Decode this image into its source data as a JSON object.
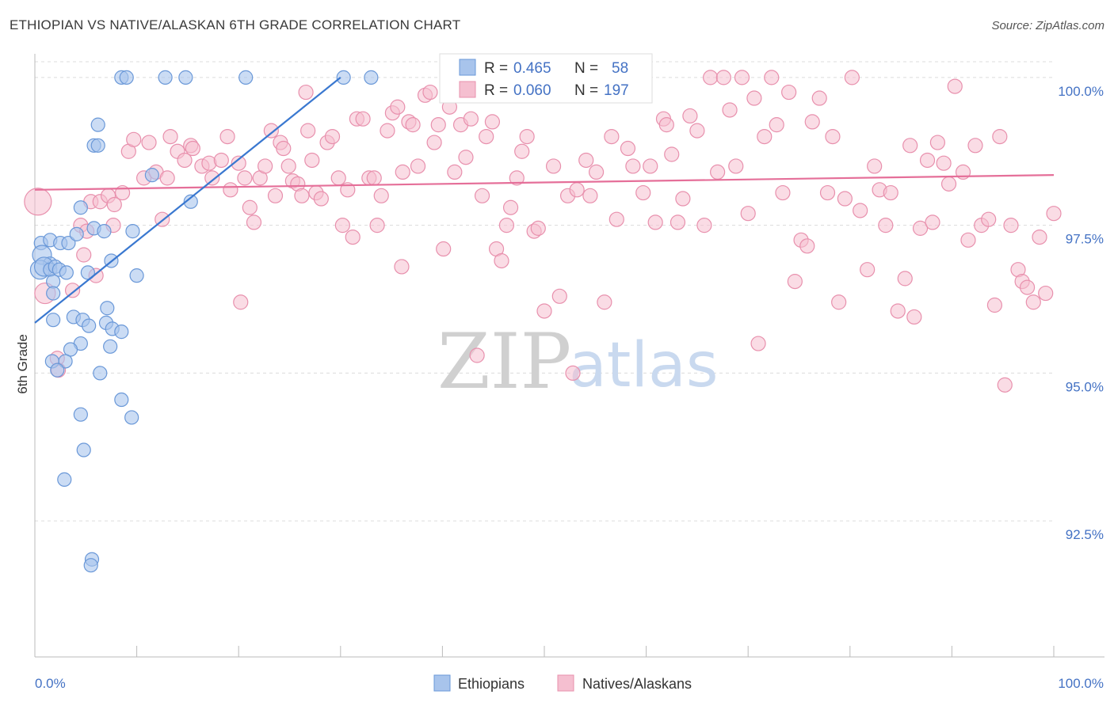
{
  "header": {
    "title": "ETHIOPIAN VS NATIVE/ALASKAN 6TH GRADE CORRELATION CHART",
    "source": "Source: ZipAtlas.com"
  },
  "watermark": {
    "zip": "ZIP",
    "atlas": "atlas"
  },
  "legend": {
    "rows": [
      {
        "r_label": "R =",
        "r_value": "0.465",
        "n_label": "N =",
        "n_value": "58"
      },
      {
        "r_label": "R =",
        "r_value": "0.060",
        "n_label": "N =",
        "n_value": "197"
      }
    ]
  },
  "bottom_legend": {
    "series1": "Ethiopians",
    "series2": "Natives/Alaskans"
  },
  "chart_data": {
    "type": "scatter",
    "title": "ETHIOPIAN VS NATIVE/ALASKAN 6TH GRADE CORRELATION CHART",
    "xlabel": "",
    "ylabel": "6th Grade",
    "xlim": [
      0,
      100
    ],
    "ylim": [
      90.2,
      100.4
    ],
    "y_ticks": [
      {
        "value": 100.0,
        "label": "100.0%"
      },
      {
        "value": 97.5,
        "label": "97.5%"
      },
      {
        "value": 95.0,
        "label": "95.0%"
      },
      {
        "value": 92.5,
        "label": "92.5%"
      }
    ],
    "x_tick_labels": [
      {
        "value": 0,
        "label": "0.0%"
      },
      {
        "value": 100,
        "label": "100.0%"
      }
    ],
    "grid": true,
    "legend_position": "top-center",
    "colors": {
      "ethiopians_fill": "#a8c4ec",
      "ethiopians_stroke": "#6a98d8",
      "ethiopians_line": "#3a78d0",
      "natives_fill": "#f5bfd0",
      "natives_stroke": "#e890ad",
      "natives_line": "#e56f99"
    },
    "series": [
      {
        "name": "Ethiopians",
        "trend": {
          "x1": 0,
          "y1": 95.85,
          "x2": 30,
          "y2": 100.0
        },
        "points": [
          [
            8.5,
            100.0
          ],
          [
            9.0,
            100.0
          ],
          [
            12.8,
            100.0
          ],
          [
            14.8,
            100.0
          ],
          [
            20.7,
            100.0
          ],
          [
            30.3,
            100.0
          ],
          [
            33.0,
            100.0
          ],
          [
            6.2,
            99.2
          ],
          [
            5.8,
            98.85
          ],
          [
            6.2,
            98.85
          ],
          [
            11.5,
            98.35
          ],
          [
            15.3,
            97.9
          ],
          [
            4.5,
            97.8
          ],
          [
            5.8,
            97.45
          ],
          [
            6.8,
            97.4
          ],
          [
            9.6,
            97.4
          ],
          [
            0.6,
            97.2
          ],
          [
            1.5,
            97.25
          ],
          [
            2.5,
            97.2
          ],
          [
            3.3,
            97.2
          ],
          [
            4.1,
            97.35
          ],
          [
            0.7,
            97.0
          ],
          [
            1.5,
            96.85
          ],
          [
            0.5,
            96.75
          ],
          [
            0.9,
            96.8
          ],
          [
            1.5,
            96.75
          ],
          [
            2.0,
            96.8
          ],
          [
            2.4,
            96.75
          ],
          [
            3.1,
            96.7
          ],
          [
            1.8,
            96.55
          ],
          [
            5.2,
            96.7
          ],
          [
            7.5,
            96.9
          ],
          [
            10.0,
            96.65
          ],
          [
            1.8,
            96.35
          ],
          [
            7.1,
            96.1
          ],
          [
            3.8,
            95.95
          ],
          [
            1.8,
            95.9
          ],
          [
            4.7,
            95.9
          ],
          [
            7.0,
            95.85
          ],
          [
            5.3,
            95.8
          ],
          [
            7.6,
            95.75
          ],
          [
            8.5,
            95.7
          ],
          [
            4.5,
            95.5
          ],
          [
            3.5,
            95.4
          ],
          [
            7.4,
            95.45
          ],
          [
            1.7,
            95.2
          ],
          [
            3.0,
            95.2
          ],
          [
            2.2,
            95.05
          ],
          [
            6.4,
            95.0
          ],
          [
            8.5,
            94.55
          ],
          [
            9.5,
            94.25
          ],
          [
            4.5,
            94.3
          ],
          [
            4.8,
            93.7
          ],
          [
            2.9,
            93.2
          ],
          [
            5.6,
            91.85
          ],
          [
            5.5,
            91.75
          ]
        ]
      },
      {
        "name": "Natives/Alaskans",
        "trend": {
          "x1": 0,
          "y1": 98.1,
          "x2": 100,
          "y2": 98.35
        },
        "points": [
          [
            0.3,
            97.9
          ],
          [
            1.0,
            96.35
          ],
          [
            2.2,
            95.25
          ],
          [
            2.3,
            95.05
          ],
          [
            3.7,
            96.4
          ],
          [
            4.5,
            97.5
          ],
          [
            5.1,
            97.4
          ],
          [
            4.8,
            97.0
          ],
          [
            6.0,
            96.65
          ],
          [
            5.5,
            97.9
          ],
          [
            6.4,
            97.9
          ],
          [
            7.2,
            98.0
          ],
          [
            8.6,
            98.05
          ],
          [
            7.8,
            97.85
          ],
          [
            7.7,
            97.5
          ],
          [
            9.2,
            98.75
          ],
          [
            9.7,
            98.95
          ],
          [
            10.7,
            98.3
          ],
          [
            11.2,
            98.9
          ],
          [
            11.9,
            98.4
          ],
          [
            12.5,
            97.6
          ],
          [
            13.0,
            98.3
          ],
          [
            13.3,
            99.0
          ],
          [
            14.0,
            98.75
          ],
          [
            14.7,
            98.6
          ],
          [
            15.3,
            98.85
          ],
          [
            15.5,
            98.8
          ],
          [
            16.4,
            98.5
          ],
          [
            17.1,
            98.55
          ],
          [
            17.4,
            98.3
          ],
          [
            18.3,
            98.6
          ],
          [
            18.9,
            99.0
          ],
          [
            19.2,
            98.1
          ],
          [
            20.2,
            96.2
          ],
          [
            20.6,
            98.3
          ],
          [
            21.1,
            97.8
          ],
          [
            21.5,
            97.55
          ],
          [
            22.1,
            98.3
          ],
          [
            22.6,
            98.5
          ],
          [
            23.2,
            99.1
          ],
          [
            23.6,
            98.0
          ],
          [
            24.1,
            98.9
          ],
          [
            24.4,
            98.8
          ],
          [
            24.9,
            98.5
          ],
          [
            25.3,
            98.25
          ],
          [
            25.8,
            98.2
          ],
          [
            26.2,
            98.0
          ],
          [
            26.8,
            99.1
          ],
          [
            27.2,
            98.6
          ],
          [
            27.6,
            98.05
          ],
          [
            28.1,
            97.95
          ],
          [
            28.7,
            98.9
          ],
          [
            29.2,
            99.0
          ],
          [
            29.8,
            98.3
          ],
          [
            30.2,
            97.5
          ],
          [
            30.7,
            98.1
          ],
          [
            31.2,
            97.3
          ],
          [
            31.6,
            99.3
          ],
          [
            32.2,
            99.3
          ],
          [
            32.8,
            98.3
          ],
          [
            33.3,
            98.3
          ],
          [
            33.6,
            97.5
          ],
          [
            34.0,
            98.0
          ],
          [
            34.6,
            99.1
          ],
          [
            35.1,
            99.4
          ],
          [
            35.6,
            99.5
          ],
          [
            36.1,
            98.4
          ],
          [
            36.7,
            99.25
          ],
          [
            37.1,
            99.2
          ],
          [
            37.6,
            98.5
          ],
          [
            38.3,
            99.7
          ],
          [
            38.8,
            99.75
          ],
          [
            39.2,
            98.9
          ],
          [
            39.6,
            99.2
          ],
          [
            40.1,
            97.1
          ],
          [
            40.7,
            99.5
          ],
          [
            41.2,
            98.4
          ],
          [
            41.8,
            99.2
          ],
          [
            42.3,
            98.65
          ],
          [
            42.8,
            99.3
          ],
          [
            43.4,
            95.3
          ],
          [
            43.9,
            98.0
          ],
          [
            44.3,
            99.0
          ],
          [
            44.9,
            99.25
          ],
          [
            45.3,
            97.1
          ],
          [
            45.8,
            96.9
          ],
          [
            46.3,
            97.5
          ],
          [
            46.7,
            97.8
          ],
          [
            47.3,
            98.3
          ],
          [
            47.8,
            98.75
          ],
          [
            48.3,
            99.0
          ],
          [
            49.0,
            97.4
          ],
          [
            49.4,
            97.45
          ],
          [
            50.0,
            96.05
          ],
          [
            50.9,
            98.5
          ],
          [
            51.5,
            96.3
          ],
          [
            52.3,
            98.0
          ],
          [
            52.8,
            95.0
          ],
          [
            53.2,
            98.1
          ],
          [
            54.1,
            98.6
          ],
          [
            55.1,
            98.4
          ],
          [
            55.9,
            96.2
          ],
          [
            56.6,
            99.0
          ],
          [
            57.1,
            97.6
          ],
          [
            58.2,
            98.8
          ],
          [
            58.7,
            98.5
          ],
          [
            59.2,
            100.0
          ],
          [
            59.7,
            98.05
          ],
          [
            60.4,
            98.5
          ],
          [
            60.9,
            97.55
          ],
          [
            61.7,
            99.3
          ],
          [
            62.5,
            98.7
          ],
          [
            63.1,
            97.55
          ],
          [
            63.6,
            97.95
          ],
          [
            64.3,
            99.35
          ],
          [
            65.0,
            99.1
          ],
          [
            65.7,
            97.5
          ],
          [
            66.3,
            100.0
          ],
          [
            67.0,
            98.4
          ],
          [
            67.6,
            100.0
          ],
          [
            68.2,
            99.45
          ],
          [
            68.8,
            98.5
          ],
          [
            69.4,
            100.0
          ],
          [
            70.0,
            97.7
          ],
          [
            70.6,
            99.65
          ],
          [
            71.0,
            95.5
          ],
          [
            71.6,
            99.0
          ],
          [
            72.3,
            100.0
          ],
          [
            72.8,
            99.2
          ],
          [
            73.4,
            98.05
          ],
          [
            74.0,
            99.75
          ],
          [
            74.6,
            96.55
          ],
          [
            75.2,
            97.25
          ],
          [
            75.8,
            97.15
          ],
          [
            76.3,
            99.25
          ],
          [
            77.0,
            99.65
          ],
          [
            77.8,
            98.05
          ],
          [
            78.3,
            99.0
          ],
          [
            78.9,
            96.2
          ],
          [
            79.5,
            97.95
          ],
          [
            80.2,
            100.0
          ],
          [
            81.0,
            97.75
          ],
          [
            81.7,
            96.75
          ],
          [
            82.4,
            98.5
          ],
          [
            82.9,
            98.1
          ],
          [
            83.5,
            97.5
          ],
          [
            84.0,
            98.05
          ],
          [
            84.7,
            96.05
          ],
          [
            85.4,
            96.6
          ],
          [
            85.9,
            98.85
          ],
          [
            86.3,
            95.95
          ],
          [
            86.9,
            97.45
          ],
          [
            87.6,
            98.6
          ],
          [
            88.1,
            97.55
          ],
          [
            88.6,
            98.9
          ],
          [
            89.2,
            98.55
          ],
          [
            89.7,
            98.2
          ],
          [
            90.3,
            99.85
          ],
          [
            91.1,
            98.4
          ],
          [
            91.6,
            97.25
          ],
          [
            92.3,
            98.85
          ],
          [
            92.9,
            97.5
          ],
          [
            93.6,
            97.6
          ],
          [
            94.2,
            96.15
          ],
          [
            94.7,
            99.0
          ],
          [
            95.2,
            94.8
          ],
          [
            95.8,
            97.5
          ],
          [
            96.5,
            96.75
          ],
          [
            96.9,
            96.55
          ],
          [
            97.4,
            96.45
          ],
          [
            98.0,
            96.2
          ],
          [
            98.6,
            97.3
          ],
          [
            99.2,
            96.35
          ],
          [
            100.0,
            97.7
          ],
          [
            54.5,
            98.0
          ],
          [
            20.0,
            98.55
          ],
          [
            36.0,
            96.8
          ],
          [
            43.2,
            99.75
          ],
          [
            62.0,
            99.2
          ],
          [
            26.6,
            99.75
          ]
        ]
      }
    ]
  }
}
